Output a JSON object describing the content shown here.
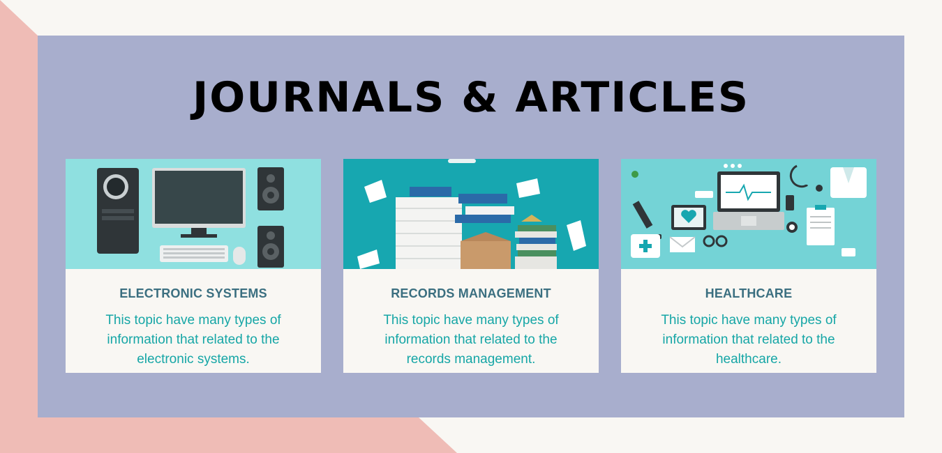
{
  "title": "JOURNALS & ARTICLES",
  "colors": {
    "background": "#f9f7f3",
    "accent_shape": "#efbcb6",
    "panel": "#a8aecd",
    "card_title": "#3b6f80",
    "card_text": "#16a6a6"
  },
  "cards": [
    {
      "icon": "computer-setup-icon",
      "title": "ELECTRONIC SYSTEMS",
      "description": "This topic have many types of information that related to the electronic systems."
    },
    {
      "icon": "document-stacks-icon",
      "title": "RECORDS MANAGEMENT",
      "description": "This topic have many types of information that related to the records management."
    },
    {
      "icon": "medical-equipment-icon",
      "title": "HEALTHCARE",
      "description": "This topic have many types of information that related to the healthcare."
    }
  ]
}
